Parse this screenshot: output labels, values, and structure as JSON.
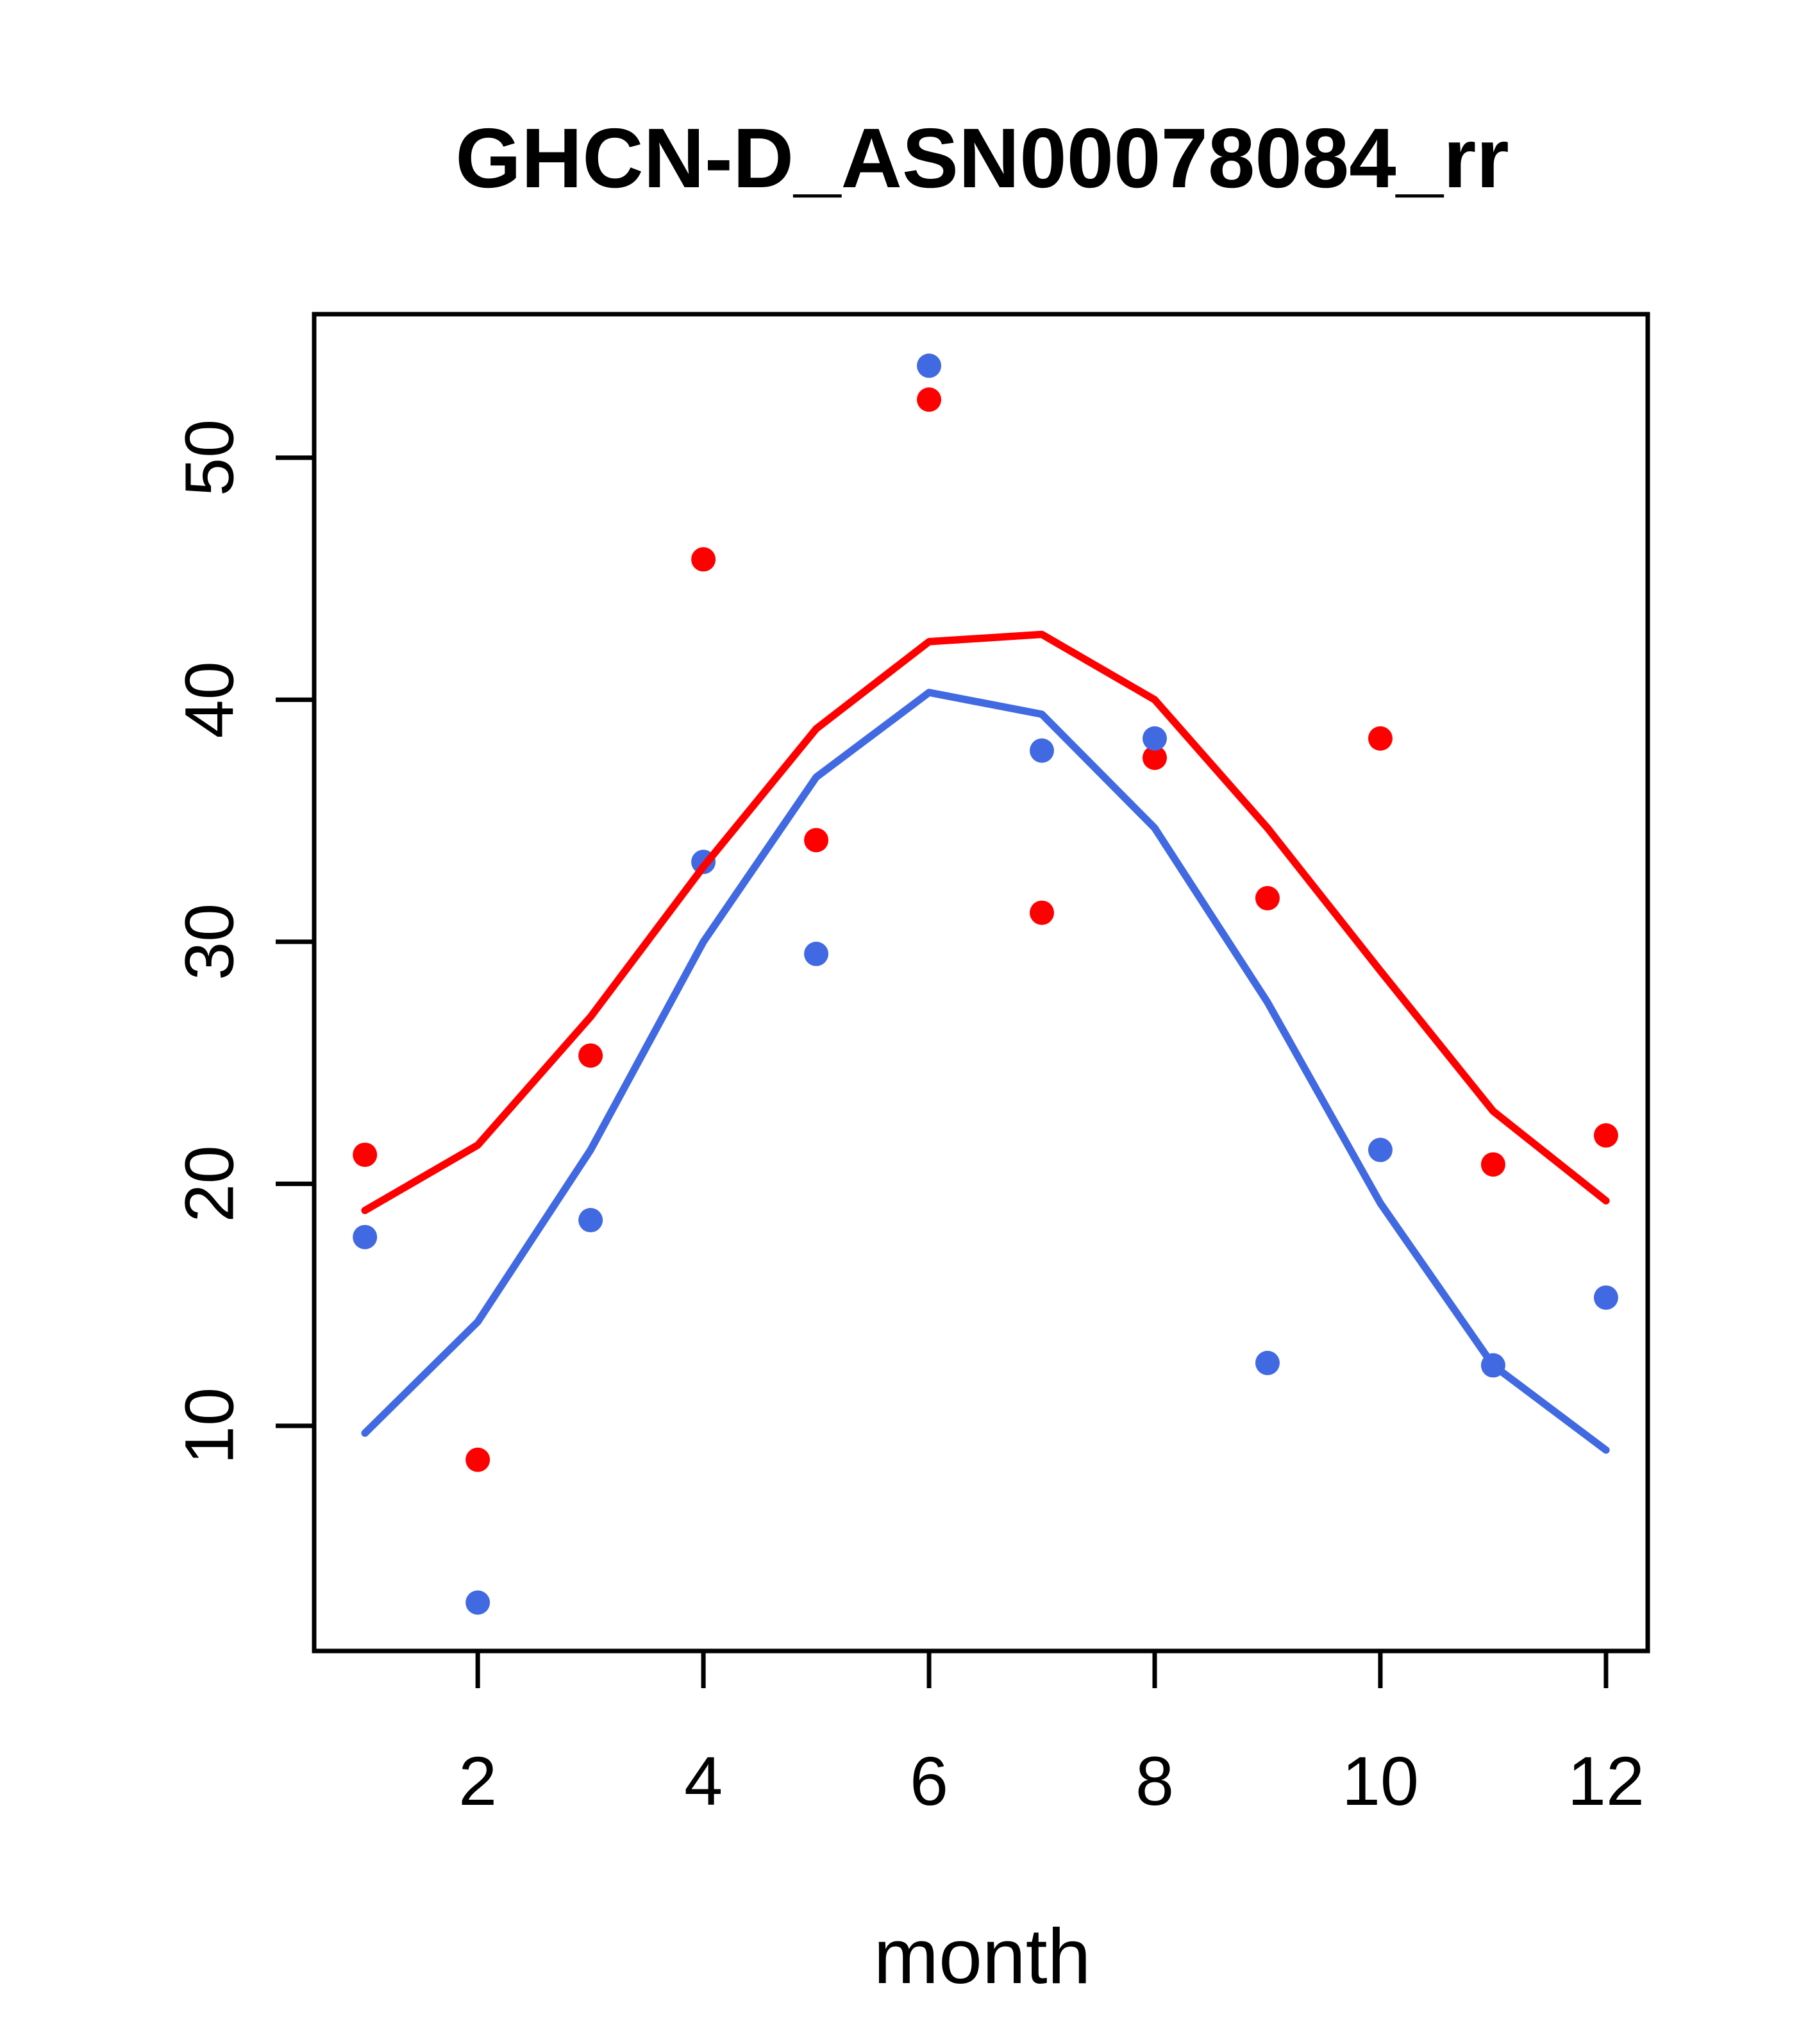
{
  "figure": {
    "title": "GHCN-D_ASN00078084_rr",
    "xlabel": "month",
    "background": "#ffffff",
    "box_color": "#000000"
  },
  "chart_data": {
    "type": "scatter",
    "title": "GHCN-D_ASN00078084_rr",
    "xlabel": "month",
    "ylabel": "",
    "grid": false,
    "legend_position": "none",
    "x": [
      1,
      2,
      3,
      4,
      5,
      6,
      7,
      8,
      9,
      10,
      11,
      12
    ],
    "x_ticks": [
      2,
      4,
      6,
      8,
      10,
      12
    ],
    "y_ticks": [
      10,
      20,
      30,
      40,
      50
    ],
    "xlim": [
      0.55,
      12.37
    ],
    "ylim": [
      0.7,
      55.93
    ],
    "series": [
      {
        "name": "red-points",
        "type": "scatter",
        "color": "#ff0000",
        "values": [
          21.2,
          8.6,
          25.3,
          45.8,
          34.2,
          52.4,
          31.2,
          37.6,
          31.8,
          38.4,
          20.8,
          22.0
        ]
      },
      {
        "name": "blue-points",
        "type": "scatter",
        "color": "#4169e1",
        "values": [
          17.8,
          2.7,
          18.5,
          33.3,
          29.5,
          53.8,
          37.9,
          38.4,
          12.6,
          21.4,
          12.5,
          15.3
        ]
      },
      {
        "name": "blue-line",
        "type": "line",
        "color": "#4169e1",
        "values": [
          9.7,
          14.3,
          21.4,
          30.0,
          36.8,
          40.3,
          39.4,
          34.7,
          27.5,
          19.2,
          12.5,
          9.0
        ]
      },
      {
        "name": "red-line",
        "type": "line",
        "color": "#ff0000",
        "values": [
          18.9,
          21.6,
          26.9,
          33.1,
          38.8,
          42.4,
          42.7,
          40.0,
          34.7,
          28.8,
          23.0,
          19.3
        ]
      }
    ]
  }
}
